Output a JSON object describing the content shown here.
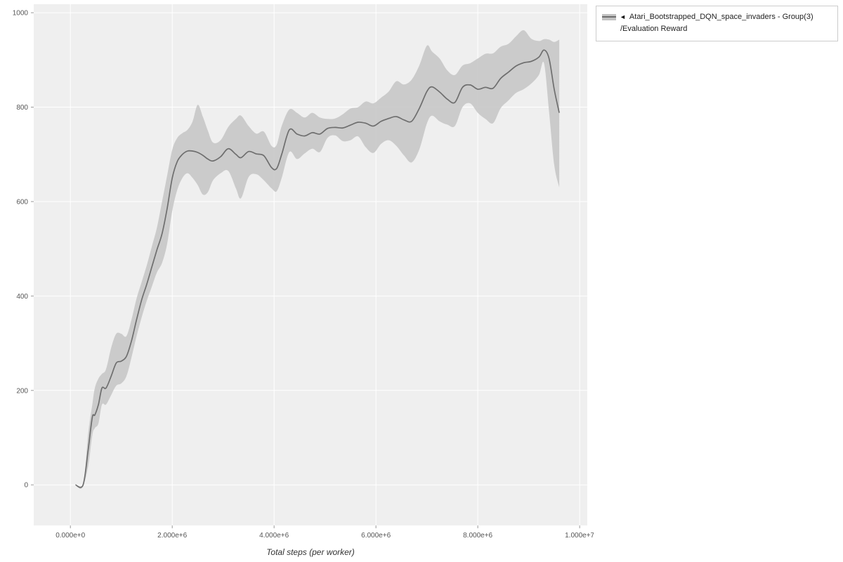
{
  "legend": {
    "marker": "◄",
    "line1": "Atari_Bootstrapped_DQN_space_invaders - Group(3)",
    "line2": "/Evaluation Reward"
  },
  "chart_data": {
    "type": "line",
    "title": "",
    "xlabel": "Total steps (per worker)",
    "ylabel": "",
    "grid": true,
    "legend_position": "top-right",
    "panel_background": "#efefef",
    "grid_color": "#ffffff",
    "tick_color": "#999999",
    "xlim": [
      -720000,
      10150000
    ],
    "ylim": [
      -86,
      1018
    ],
    "xticks": [
      {
        "value": 0,
        "label": "0.000e+0"
      },
      {
        "value": 2000000,
        "label": "2.000e+6"
      },
      {
        "value": 4000000,
        "label": "4.000e+6"
      },
      {
        "value": 6000000,
        "label": "6.000e+6"
      },
      {
        "value": 8000000,
        "label": "8.000e+6"
      },
      {
        "value": 10000000,
        "label": "1.000e+7"
      }
    ],
    "yticks": [
      {
        "value": 0,
        "label": "0"
      },
      {
        "value": 200,
        "label": "200"
      },
      {
        "value": 400,
        "label": "400"
      },
      {
        "value": 600,
        "label": "600"
      },
      {
        "value": 800,
        "label": "800"
      },
      {
        "value": 1000,
        "label": "1000"
      }
    ],
    "series": [
      {
        "name": "Atari_Bootstrapped_DQN_space_invaders - Group(3)/Evaluation Reward",
        "color": "#6e6e6e",
        "band_color": "#c4c4c4",
        "band_opacity": 0.85,
        "points_format": [
          "x_steps",
          "mean",
          "low",
          "high"
        ],
        "points": [
          [
            100000,
            0,
            0,
            0
          ],
          [
            250000,
            0,
            0,
            0
          ],
          [
            350000,
            75,
            40,
            110
          ],
          [
            430000,
            143,
            105,
            170
          ],
          [
            480000,
            148,
            120,
            205
          ],
          [
            550000,
            170,
            130,
            225
          ],
          [
            620000,
            205,
            170,
            235
          ],
          [
            700000,
            205,
            170,
            245
          ],
          [
            800000,
            230,
            190,
            290
          ],
          [
            900000,
            258,
            210,
            320
          ],
          [
            1000000,
            262,
            215,
            320
          ],
          [
            1100000,
            272,
            230,
            315
          ],
          [
            1200000,
            305,
            270,
            350
          ],
          [
            1300000,
            350,
            315,
            395
          ],
          [
            1400000,
            392,
            355,
            430
          ],
          [
            1500000,
            425,
            390,
            465
          ],
          [
            1600000,
            462,
            420,
            505
          ],
          [
            1700000,
            498,
            450,
            545
          ],
          [
            1800000,
            532,
            470,
            600
          ],
          [
            1900000,
            585,
            510,
            655
          ],
          [
            2000000,
            650,
            580,
            710
          ],
          [
            2100000,
            685,
            625,
            735
          ],
          [
            2200000,
            700,
            650,
            745
          ],
          [
            2300000,
            707,
            660,
            752
          ],
          [
            2400000,
            707,
            650,
            770
          ],
          [
            2500000,
            704,
            635,
            805
          ],
          [
            2600000,
            698,
            615,
            780
          ],
          [
            2700000,
            690,
            620,
            750
          ],
          [
            2800000,
            686,
            645,
            725
          ],
          [
            2950000,
            695,
            660,
            730
          ],
          [
            3100000,
            712,
            665,
            758
          ],
          [
            3250000,
            700,
            628,
            775
          ],
          [
            3350000,
            693,
            607,
            782
          ],
          [
            3500000,
            706,
            652,
            760
          ],
          [
            3650000,
            701,
            658,
            744
          ],
          [
            3800000,
            697,
            645,
            748
          ],
          [
            3950000,
            672,
            628,
            718
          ],
          [
            4050000,
            670,
            622,
            720
          ],
          [
            4150000,
            700,
            650,
            760
          ],
          [
            4300000,
            752,
            705,
            795
          ],
          [
            4450000,
            743,
            690,
            788
          ],
          [
            4600000,
            739,
            702,
            778
          ],
          [
            4750000,
            746,
            712,
            788
          ],
          [
            4900000,
            743,
            705,
            778
          ],
          [
            5050000,
            755,
            735,
            775
          ],
          [
            5200000,
            757,
            740,
            776
          ],
          [
            5350000,
            756,
            728,
            785
          ],
          [
            5500000,
            762,
            730,
            797
          ],
          [
            5650000,
            768,
            738,
            800
          ],
          [
            5800000,
            766,
            715,
            812
          ],
          [
            5950000,
            760,
            703,
            808
          ],
          [
            6100000,
            770,
            722,
            820
          ],
          [
            6250000,
            776,
            730,
            833
          ],
          [
            6400000,
            780,
            718,
            855
          ],
          [
            6550000,
            773,
            698,
            848
          ],
          [
            6700000,
            770,
            683,
            858
          ],
          [
            6850000,
            797,
            710,
            888
          ],
          [
            7000000,
            833,
            765,
            930
          ],
          [
            7100000,
            843,
            782,
            918
          ],
          [
            7250000,
            832,
            770,
            903
          ],
          [
            7400000,
            817,
            763,
            878
          ],
          [
            7550000,
            810,
            760,
            868
          ],
          [
            7700000,
            842,
            800,
            888
          ],
          [
            7850000,
            847,
            808,
            893
          ],
          [
            8000000,
            838,
            788,
            903
          ],
          [
            8150000,
            842,
            775,
            913
          ],
          [
            8300000,
            840,
            766,
            914
          ],
          [
            8450000,
            861,
            798,
            928
          ],
          [
            8600000,
            874,
            814,
            934
          ],
          [
            8750000,
            887,
            830,
            950
          ],
          [
            8900000,
            894,
            838,
            963
          ],
          [
            9050000,
            897,
            850,
            945
          ],
          [
            9200000,
            906,
            868,
            940
          ],
          [
            9300000,
            921,
            893,
            944
          ],
          [
            9400000,
            903,
            790,
            943
          ],
          [
            9500000,
            838,
            678,
            938
          ],
          [
            9600000,
            788,
            630,
            943
          ]
        ]
      }
    ]
  }
}
